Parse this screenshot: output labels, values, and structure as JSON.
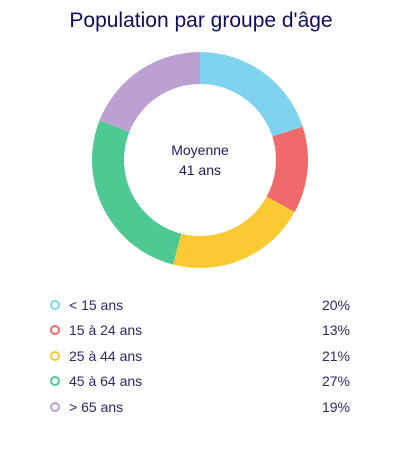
{
  "chart_data": {
    "type": "pie",
    "title": "Population par groupe d'âge",
    "center_label": {
      "line1": "Moyenne",
      "line2": "41 ans"
    },
    "categories": [
      "< 15 ans",
      "15 à 24 ans",
      "25 à 44 ans",
      "45 à 64 ans",
      "> 65 ans"
    ],
    "values": [
      20,
      13,
      21,
      27,
      19
    ],
    "value_labels": [
      "20%",
      "13%",
      "21%",
      "27%",
      "19%"
    ],
    "colors": [
      "#7fd3ef",
      "#ef6b6b",
      "#fbc931",
      "#4fc993",
      "#bba0d2"
    ],
    "legend_position": "bottom",
    "donut": true
  }
}
